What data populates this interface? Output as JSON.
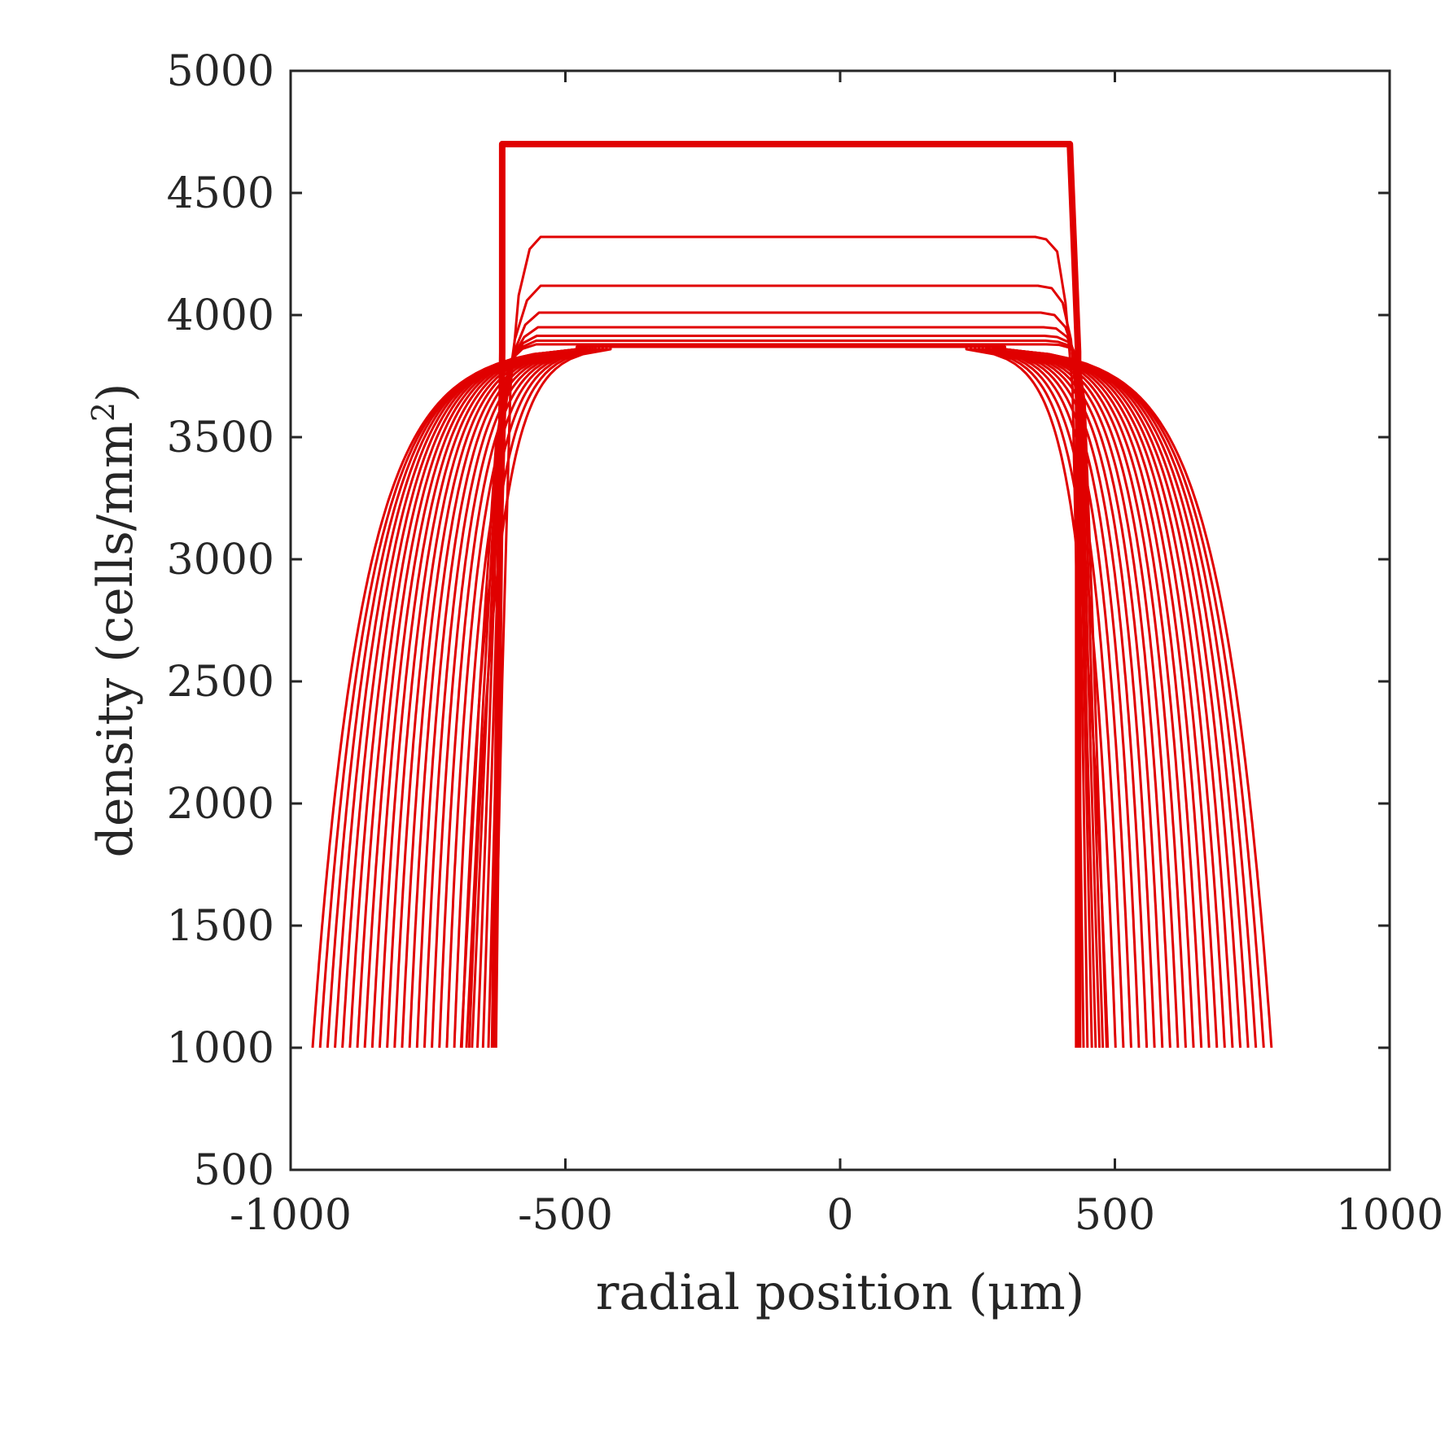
{
  "chart_data": {
    "type": "line",
    "title": "",
    "xlabel": "radial position (μm)",
    "ylabel_main": "density (cells/mm",
    "ylabel_sup": "2",
    "ylabel_close": ")",
    "xlim": [
      -1000,
      1000
    ],
    "ylim": [
      500,
      5000
    ],
    "xticks": [
      -1000,
      -500,
      0,
      500,
      1000
    ],
    "yticks": [
      500,
      1000,
      1500,
      2000,
      2500,
      3000,
      3500,
      4000,
      4500,
      5000
    ],
    "xtick_labels": [
      "-1000",
      "-500",
      "0",
      "500",
      "1000"
    ],
    "ytick_labels": [
      "500",
      "1000",
      "1500",
      "2000",
      "2500",
      "3000",
      "3500",
      "4000",
      "4500",
      "5000"
    ],
    "grid": false,
    "legend": "none",
    "line_color": "#e00000",
    "series": [
      {
        "x": [
          -630,
          -615,
          -615,
          418,
          418,
          433,
          433
        ],
        "y": [
          1000,
          3850,
          4700,
          4700,
          4700,
          3850,
          1000
        ],
        "emphasis": true
      },
      {
        "x": [
          -630,
          -615,
          -600,
          -585,
          -565,
          -545,
          355,
          375,
          395,
          410,
          423,
          433,
          443
        ],
        "y": [
          1000,
          2500,
          3700,
          4080,
          4270,
          4320,
          4320,
          4310,
          4260,
          4050,
          3700,
          2600,
          1000
        ]
      },
      {
        "x": [
          -640,
          -625,
          -610,
          -592,
          -570,
          -545,
          360,
          385,
          405,
          420,
          430,
          440,
          450
        ],
        "y": [
          1000,
          2300,
          3600,
          3900,
          4060,
          4120,
          4120,
          4110,
          4050,
          3900,
          3650,
          2500,
          1000
        ]
      },
      {
        "x": [
          -650,
          -633,
          -615,
          -595,
          -573,
          -548,
          365,
          390,
          410,
          425,
          435,
          445,
          458
        ],
        "y": [
          1000,
          2200,
          3550,
          3840,
          3960,
          4010,
          4010,
          4000,
          3950,
          3850,
          3620,
          2400,
          1000
        ]
      },
      {
        "x": [
          -660,
          -640,
          -620,
          -598,
          -575,
          -550,
          370,
          393,
          413,
          428,
          438,
          448,
          465
        ],
        "y": [
          1000,
          2200,
          3500,
          3820,
          3910,
          3950,
          3950,
          3945,
          3910,
          3840,
          3600,
          2400,
          1000
        ]
      },
      {
        "x": [
          -670,
          -645,
          -622,
          -600,
          -577,
          -552,
          372,
          395,
          415,
          430,
          440,
          452,
          472
        ],
        "y": [
          1000,
          2300,
          3450,
          3810,
          3885,
          3915,
          3915,
          3910,
          3890,
          3830,
          3600,
          2500,
          1000
        ]
      },
      {
        "x": [
          -680,
          -650,
          -624,
          -601,
          -578,
          -553,
          374,
          397,
          417,
          432,
          443,
          456,
          478
        ],
        "y": [
          1000,
          2400,
          3450,
          3810,
          3870,
          3895,
          3895,
          3890,
          3875,
          3830,
          3620,
          2600,
          1000
        ]
      },
      {
        "x": [
          -690,
          -655,
          -626,
          -602,
          -578,
          -553,
          375,
          398,
          418,
          433,
          445,
          460,
          485
        ],
        "y": [
          1000,
          2500,
          3480,
          3810,
          3862,
          3880,
          3880,
          3878,
          3866,
          3830,
          3640,
          2700,
          1000
        ]
      }
    ]
  }
}
